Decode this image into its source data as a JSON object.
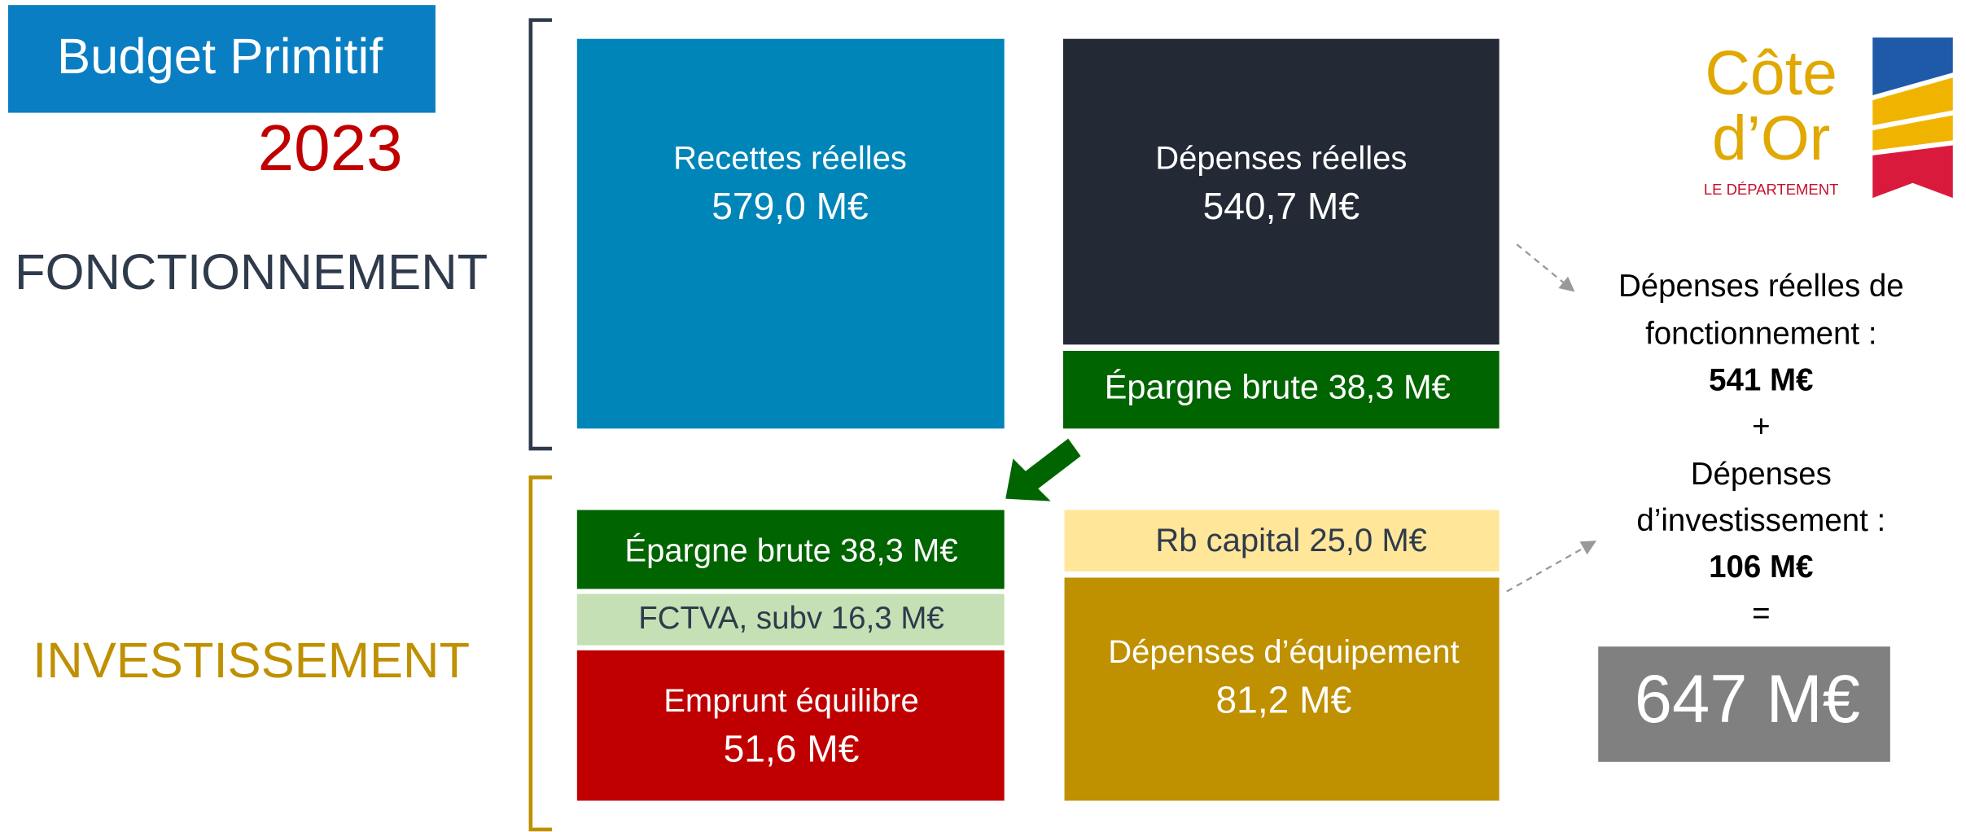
{
  "header": {
    "title": "Budget Primitif",
    "year": "2023"
  },
  "sections": {
    "fonctionnement": "FONCTIONNEMENT",
    "investissement": "INVESTISSEMENT"
  },
  "fonctionnement": {
    "recettes": {
      "label": "Recettes réelles",
      "value": "579,0 M€"
    },
    "depenses": {
      "label": "Dépenses réelles",
      "value": "540,7 M€"
    },
    "epargne": "Épargne brute 38,3 M€"
  },
  "investissement": {
    "epargne": "Épargne brute 38,3 M€",
    "fctva": "FCTVA, subv 16,3 M€",
    "emprunt": {
      "label": "Emprunt équilibre",
      "value": "51,6 M€"
    },
    "rb_capital": "Rb capital 25,0 M€",
    "equipement": {
      "label": "Dépenses d’équipement",
      "value": "81,2 M€"
    }
  },
  "logo": {
    "line1": "Côte",
    "line2": "d’Or",
    "line3": "LE DÉPARTEMENT"
  },
  "summary": {
    "lines": [
      "Dépenses réelles de",
      "fonctionnement :",
      "541 M€",
      "+",
      "Dépenses",
      "d’investissement :",
      "106 M€",
      "="
    ],
    "total": "647 M€"
  }
}
